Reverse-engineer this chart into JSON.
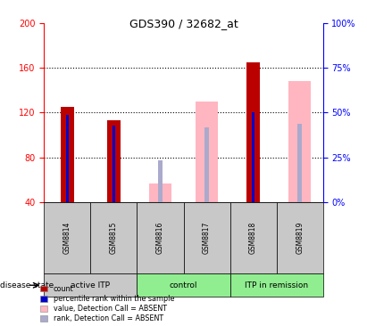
{
  "title": "GDS390 / 32682_at",
  "samples": [
    "GSM8814",
    "GSM8815",
    "GSM8816",
    "GSM8817",
    "GSM8818",
    "GSM8819"
  ],
  "ylim_left": [
    40,
    200
  ],
  "ylim_right": [
    0,
    100
  ],
  "left_ticks": [
    40,
    80,
    120,
    160,
    200
  ],
  "right_ticks": [
    0,
    25,
    50,
    75,
    100
  ],
  "count_color": "#BB0000",
  "percentile_color": "#0000CC",
  "absent_value_color": "#FFB6C1",
  "absent_rank_color": "#AAAACC",
  "count_values": [
    125,
    113,
    null,
    null,
    165,
    null
  ],
  "percentile_values": [
    118,
    108,
    null,
    null,
    120,
    null
  ],
  "absent_value_values": [
    null,
    null,
    57,
    130,
    null,
    148
  ],
  "absent_rank_values": [
    null,
    null,
    77,
    107,
    null,
    110
  ],
  "group_labels": [
    "active ITP",
    "control",
    "ITP in remission"
  ],
  "group_starts": [
    0,
    2,
    4
  ],
  "group_ends": [
    2,
    4,
    6
  ],
  "group_colors": [
    "#C8C8C8",
    "#90EE90",
    "#90EE90"
  ],
  "sample_box_color": "#C8C8C8",
  "legend_items": [
    {
      "label": "count",
      "color": "#BB0000"
    },
    {
      "label": "percentile rank within the sample",
      "color": "#0000CC"
    },
    {
      "label": "value, Detection Call = ABSENT",
      "color": "#FFB6C1"
    },
    {
      "label": "rank, Detection Call = ABSENT",
      "color": "#AAAACC"
    }
  ]
}
